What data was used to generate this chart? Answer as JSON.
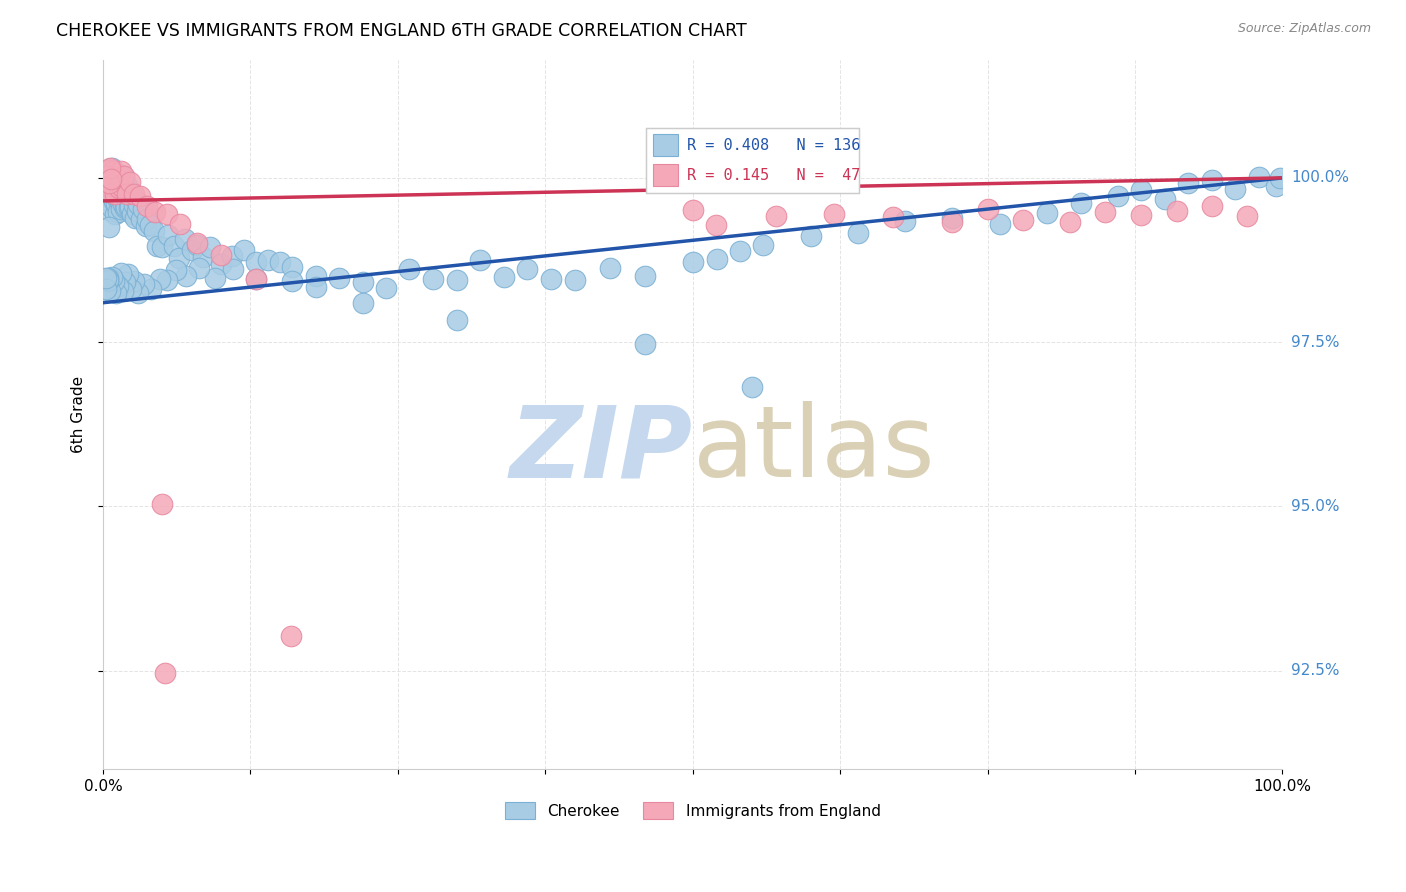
{
  "title": "CHEROKEE VS IMMIGRANTS FROM ENGLAND 6TH GRADE CORRELATION CHART",
  "source": "Source: ZipAtlas.com",
  "ylabel": "6th Grade",
  "xlim": [
    0.0,
    100.0
  ],
  "ylim": [
    91.0,
    101.8
  ],
  "yticks": [
    92.5,
    95.0,
    97.5,
    100.0
  ],
  "ytick_labels": [
    "92.5%",
    "95.0%",
    "97.5%",
    "100.0%"
  ],
  "blue_color": "#a8cce4",
  "pink_color": "#f4a8b8",
  "blue_edge": "#7ab0d4",
  "pink_edge": "#e888a0",
  "trendline_blue": "#2255aa",
  "trendline_pink": "#cc3355",
  "legend_blue_text_r": "R = 0.408",
  "legend_blue_text_n": "N = 136",
  "legend_pink_text_r": "R = 0.145",
  "legend_pink_text_n": "N =  47",
  "blue_trendline_x0": 0,
  "blue_trendline_y0": 98.1,
  "blue_trendline_x1": 100,
  "blue_trendline_y1": 100.0,
  "pink_trendline_x0": 0,
  "pink_trendline_y0": 99.65,
  "pink_trendline_x1": 100,
  "pink_trendline_y1": 100.0,
  "watermark_zip_color": "#c5d8ee",
  "watermark_atlas_color": "#d4c8a8",
  "cherokee_x": [
    0.3,
    0.4,
    0.5,
    0.5,
    0.6,
    0.6,
    0.7,
    0.7,
    0.8,
    0.8,
    0.9,
    0.9,
    1.0,
    1.0,
    1.0,
    1.1,
    1.1,
    1.2,
    1.2,
    1.3,
    1.3,
    1.4,
    1.4,
    1.5,
    1.5,
    1.6,
    1.6,
    1.7,
    1.7,
    1.8,
    1.8,
    1.9,
    2.0,
    2.0,
    2.1,
    2.1,
    2.2,
    2.3,
    2.4,
    2.5,
    2.6,
    2.7,
    2.8,
    2.9,
    3.0,
    3.2,
    3.4,
    3.6,
    3.8,
    4.0,
    4.3,
    4.6,
    5.0,
    5.5,
    6.0,
    6.5,
    7.0,
    7.5,
    8.0,
    8.5,
    9.0,
    10.0,
    11.0,
    12.0,
    13.0,
    14.0,
    15.0,
    16.0,
    18.0,
    20.0,
    22.0,
    24.0,
    26.0,
    28.0,
    30.0,
    32.0,
    34.0,
    36.0,
    38.0,
    40.0,
    43.0,
    46.0,
    50.0,
    52.0,
    54.0,
    56.0,
    60.0,
    64.0,
    68.0,
    72.0,
    76.0,
    80.0,
    83.0,
    86.0,
    88.0,
    90.0,
    92.0,
    94.0,
    96.0,
    98.0,
    99.5,
    99.8,
    55.0,
    46.0,
    30.0,
    22.0,
    18.0,
    16.0,
    13.0,
    11.0,
    9.5,
    8.2,
    7.0,
    6.2,
    5.4,
    4.8,
    4.1,
    3.5,
    3.0,
    2.7,
    2.4,
    2.1,
    1.9,
    1.7,
    1.5,
    1.3,
    1.1,
    0.9,
    0.7,
    0.6,
    0.5,
    0.4,
    0.35,
    0.3,
    0.25,
    0.5
  ],
  "cherokee_y": [
    99.8,
    99.9,
    99.5,
    100.1,
    99.7,
    100.0,
    99.6,
    99.9,
    99.8,
    100.2,
    99.7,
    100.0,
    99.5,
    99.8,
    100.1,
    99.6,
    99.9,
    99.7,
    100.0,
    99.5,
    99.8,
    99.6,
    99.9,
    99.7,
    100.1,
    99.5,
    99.8,
    99.6,
    99.9,
    99.7,
    100.0,
    99.5,
    99.6,
    99.8,
    99.7,
    99.9,
    99.5,
    99.6,
    99.7,
    99.5,
    99.6,
    99.4,
    99.7,
    99.5,
    99.6,
    99.4,
    99.5,
    99.3,
    99.4,
    99.3,
    99.2,
    99.0,
    98.9,
    99.1,
    99.0,
    98.8,
    99.1,
    98.9,
    99.0,
    98.8,
    98.9,
    98.7,
    98.8,
    98.9,
    98.7,
    98.8,
    98.7,
    98.6,
    98.5,
    98.5,
    98.4,
    98.3,
    98.6,
    98.5,
    98.4,
    98.7,
    98.5,
    98.6,
    98.5,
    98.4,
    98.6,
    98.5,
    98.7,
    98.8,
    98.9,
    99.0,
    99.1,
    99.2,
    99.3,
    99.4,
    99.3,
    99.5,
    99.6,
    99.7,
    99.8,
    99.7,
    99.9,
    100.0,
    99.8,
    100.0,
    99.9,
    100.0,
    96.8,
    97.5,
    97.8,
    98.1,
    98.3,
    98.4,
    98.5,
    98.6,
    98.5,
    98.6,
    98.5,
    98.6,
    98.4,
    98.5,
    98.3,
    98.4,
    98.3,
    98.4,
    98.3,
    98.5,
    98.4,
    98.3,
    98.5,
    98.4,
    98.3,
    98.4,
    98.5,
    98.3,
    98.4,
    98.5,
    98.4,
    98.3,
    98.5,
    99.3
  ],
  "england_x": [
    0.3,
    0.4,
    0.5,
    0.6,
    0.7,
    0.8,
    0.9,
    1.0,
    1.1,
    1.2,
    1.3,
    1.4,
    1.5,
    1.6,
    1.8,
    2.0,
    2.3,
    2.7,
    3.2,
    3.8,
    4.5,
    5.5,
    6.5,
    8.0,
    10.0,
    13.0,
    16.0,
    5.0,
    5.2,
    50.0,
    52.0,
    57.0,
    62.0,
    67.0,
    72.0,
    75.0,
    78.0,
    82.0,
    85.0,
    88.0,
    91.0,
    94.0,
    97.0,
    0.4,
    0.5,
    0.6,
    0.7
  ],
  "england_y": [
    100.0,
    99.9,
    100.1,
    99.8,
    100.0,
    99.9,
    100.1,
    99.8,
    100.0,
    99.9,
    100.0,
    99.8,
    100.1,
    99.9,
    100.0,
    99.8,
    99.9,
    99.8,
    99.7,
    99.6,
    99.5,
    99.4,
    99.3,
    99.0,
    98.8,
    98.5,
    93.0,
    95.0,
    92.5,
    99.5,
    99.3,
    99.4,
    99.5,
    99.4,
    99.3,
    99.5,
    99.4,
    99.3,
    99.5,
    99.4,
    99.5,
    99.6,
    99.4,
    100.0,
    99.9,
    100.1,
    100.0
  ]
}
